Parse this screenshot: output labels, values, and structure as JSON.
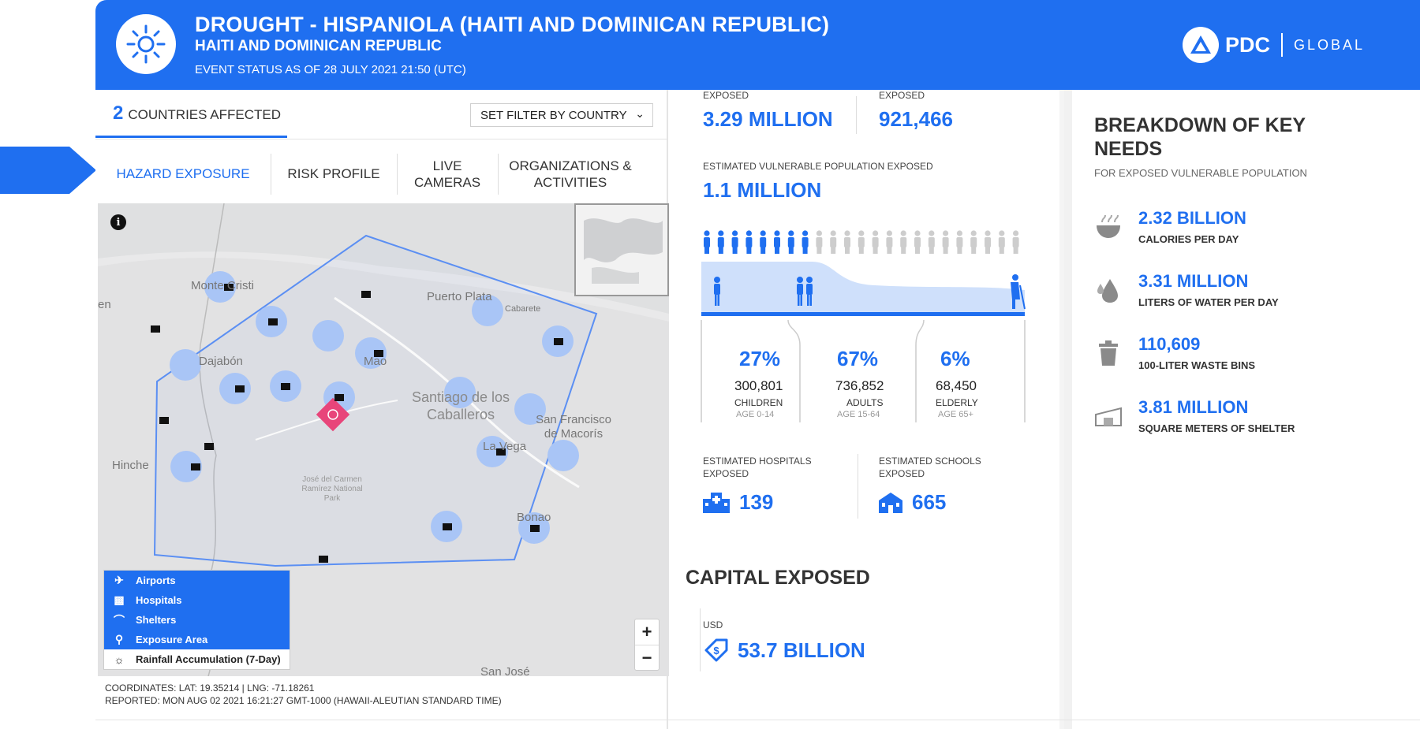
{
  "header": {
    "title": "DROUGHT - HISPANIOLA (HAITI AND DOMINICAN REPUBLIC)",
    "subtitle": "HAITI AND DOMINICAN REPUBLIC",
    "status": "EVENT STATUS AS OF 28 JULY 2021 21:50 (UTC)",
    "brand": "PDC",
    "brand_suffix": "GLOBAL"
  },
  "countries": {
    "count": "2",
    "label": "COUNTRIES AFFECTED"
  },
  "filter": {
    "label": "SET FILTER BY COUNTRY"
  },
  "tabs": [
    {
      "label": "HAZARD EXPOSURE",
      "active": true
    },
    {
      "label": "RISK PROFILE"
    },
    {
      "label": "LIVE CAMERAS"
    },
    {
      "label": "ORGANIZATIONS & ACTIVITIES"
    }
  ],
  "map": {
    "place_labels": {
      "monte_cristi": "Monte Cristi",
      "puerto_plata": "Puerto Plata",
      "cabarete": "Cabarete",
      "dajabon": "Dajabón",
      "mao": "Mao",
      "santiago": "Santiago de los Caballeros",
      "san_francisco": "San Francisco de Macorís",
      "la_vega": "La Vega",
      "hinche": "Hinche",
      "park": "José del Carmen Ramírez National Park",
      "bonao": "Bonao",
      "san_jose": "San José",
      "en": "en"
    },
    "legend": [
      {
        "icon": "airplane-icon",
        "label": "Airports",
        "active": true
      },
      {
        "icon": "hospital-icon",
        "label": "Hospitals",
        "active": true
      },
      {
        "icon": "shelter-icon",
        "label": "Shelters",
        "active": true
      },
      {
        "icon": "exposure-area-icon",
        "label": "Exposure Area",
        "active": true
      },
      {
        "icon": "rainfall-icon",
        "label": "Rainfall Accumulation (7-Day)",
        "active": false
      }
    ],
    "coordinates": "COORDINATES: LAT: 19.35214 | LNG: -71.18261",
    "reported": "REPORTED: MON AUG 02 2021 16:21:27 GMT-1000 (HAWAII-ALEUTIAN STANDARD TIME)",
    "zoom_in": "+",
    "zoom_out": "−"
  },
  "exposure": {
    "population_label": "EXPOSED",
    "population_value": "3.29 MILLION",
    "households_label": "EXPOSED",
    "households_value": "921,466",
    "vulnerable_label": "ESTIMATED VULNERABLE POPULATION EXPOSED",
    "vulnerable_value": "1.1 MILLION",
    "groups": [
      {
        "pct": "27%",
        "count": "300,801",
        "category": "CHILDREN",
        "age": "AGE 0-14"
      },
      {
        "pct": "67%",
        "count": "736,852",
        "category": "ADULTS",
        "age": "AGE 15-64"
      },
      {
        "pct": "6%",
        "count": "68,450",
        "category": "ELDERLY",
        "age": "AGE 65+"
      }
    ],
    "hospitals_label": "ESTIMATED HOSPITALS EXPOSED",
    "hospitals_value": "139",
    "schools_label": "ESTIMATED SCHOOLS EXPOSED",
    "schools_value": "665"
  },
  "capital": {
    "title": "CAPITAL EXPOSED",
    "currency": "USD",
    "value": "53.7 BILLION"
  },
  "needs": {
    "title": "BREAKDOWN OF KEY NEEDS",
    "subtitle": "FOR EXPOSED VULNERABLE POPULATION",
    "items": [
      {
        "icon": "food-bowl-icon",
        "value": "2.32 BILLION",
        "label": "CALORIES PER DAY"
      },
      {
        "icon": "water-drops-icon",
        "value": "3.31 MILLION",
        "label": "LITERS OF WATER PER DAY"
      },
      {
        "icon": "waste-bin-icon",
        "value": "110,609",
        "label": "100-LITER WASTE BINS"
      },
      {
        "icon": "shelter-icon",
        "value": "3.81 MILLION",
        "label": "SQUARE METERS OF SHELTER"
      }
    ]
  },
  "colors": {
    "brand_blue": "#1f6ff0",
    "hazard_pink": "#e8457a"
  }
}
